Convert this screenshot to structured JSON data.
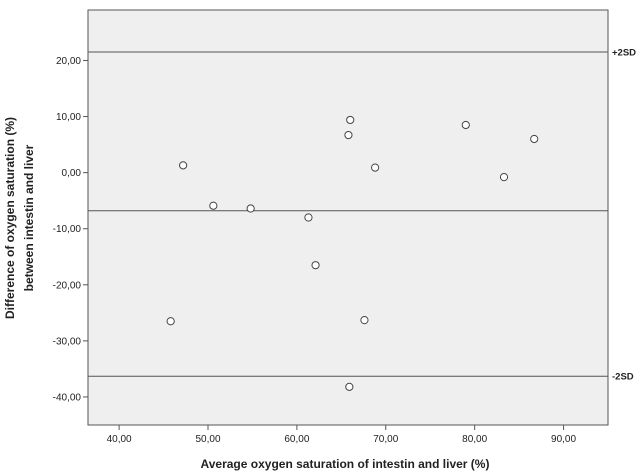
{
  "chart_data": {
    "type": "scatter",
    "title": "",
    "xlabel": "Average oxygen saturation of intestin and liver (%)",
    "ylabel_lines": [
      "Difference of oxygen saturation (%)",
      "between intestin and liver"
    ],
    "xlim": [
      36.5,
      95.0
    ],
    "ylim": [
      -45.0,
      29.0
    ],
    "x_ticks": [
      40,
      50,
      60,
      70,
      80,
      90
    ],
    "x_tick_labels": [
      "40,00",
      "50,00",
      "60,00",
      "70,00",
      "80,00",
      "90,00"
    ],
    "y_ticks": [
      20,
      10,
      0,
      -10,
      -20,
      -30,
      -40
    ],
    "y_tick_labels": [
      "20,00",
      "10,00",
      "0,00",
      "-10,00",
      "-20,00",
      "-30,00",
      "-40,00"
    ],
    "reference_lines": [
      {
        "y": 21.5,
        "label": "+2SD"
      },
      {
        "y": -6.8,
        "label": ""
      },
      {
        "y": -36.3,
        "label": "-2SD"
      }
    ],
    "points": [
      {
        "x": 47.2,
        "y": 1.3
      },
      {
        "x": 45.8,
        "y": -26.5
      },
      {
        "x": 50.6,
        "y": -5.9
      },
      {
        "x": 54.8,
        "y": -6.4
      },
      {
        "x": 61.3,
        "y": -8.0
      },
      {
        "x": 62.1,
        "y": -16.5
      },
      {
        "x": 66.0,
        "y": 9.4
      },
      {
        "x": 65.8,
        "y": 6.7
      },
      {
        "x": 68.8,
        "y": 0.9
      },
      {
        "x": 67.6,
        "y": -26.3
      },
      {
        "x": 65.9,
        "y": -38.2
      },
      {
        "x": 79.0,
        "y": 8.5
      },
      {
        "x": 83.3,
        "y": -0.8
      },
      {
        "x": 86.7,
        "y": 6.0
      }
    ],
    "grid": false,
    "colors": {
      "plot_background": "#efefef",
      "axis": "#555555",
      "marker_stroke": "#444444"
    }
  }
}
